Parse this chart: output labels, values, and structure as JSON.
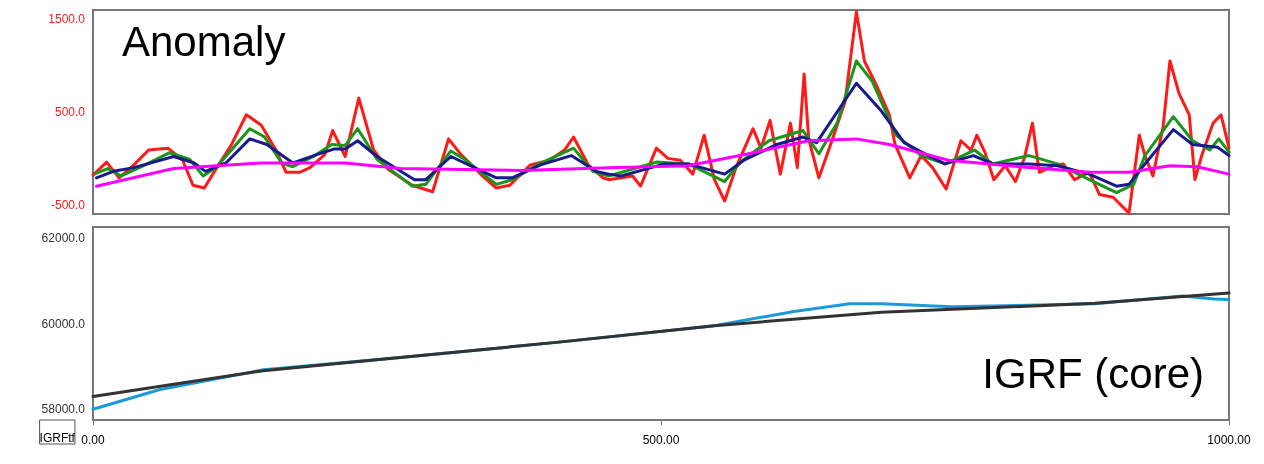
{
  "chart_data": [
    {
      "type": "line",
      "annotations": [
        "Anomaly"
      ],
      "tick_labels": "y",
      "xlim": [
        0,
        1000
      ],
      "ylim": [
        -600,
        1600
      ],
      "yticks": [
        {
          "value": -500,
          "label": "-500.0"
        },
        {
          "value": 500,
          "label": "500.0"
        },
        {
          "value": 1500,
          "label": "1500.0"
        }
      ],
      "marker": "none",
      "line_style": "solid",
      "series": [
        {
          "color": "#ff1a1a",
          "x": [
            0,
            12,
            23,
            36,
            49,
            66,
            79,
            88,
            98,
            109,
            122,
            135,
            148,
            161,
            170,
            182,
            191,
            204,
            211,
            222,
            234,
            247,
            260,
            281,
            299,
            313,
            324,
            342,
            355,
            367,
            385,
            402,
            415,
            423,
            436,
            449,
            454,
            475,
            482,
            496,
            506,
            517,
            528,
            538,
            547,
            556,
            566,
            581,
            588,
            596,
            605,
            614,
            620,
            626,
            630,
            639,
            651,
            662,
            672,
            679,
            690,
            701,
            706,
            719,
            729,
            739,
            751,
            764,
            773,
            778,
            785,
            793,
            803,
            812,
            820,
            827,
            833,
            845,
            854,
            864,
            877,
            886,
            898,
            912,
            921,
            926,
            933,
            942,
            948,
            956,
            965,
            970,
            976,
            986,
            993,
            1000
          ],
          "values": [
            -180,
            -40,
            -210,
            -70,
            90,
            110,
            -20,
            -290,
            -320,
            -100,
            150,
            470,
            360,
            90,
            -150,
            -150,
            -100,
            40,
            300,
            20,
            650,
            90,
            -120,
            -290,
            -360,
            210,
            40,
            -180,
            -320,
            -290,
            -70,
            -20,
            90,
            230,
            -70,
            -210,
            -230,
            -190,
            -300,
            110,
            0,
            -20,
            -170,
            250,
            -230,
            -460,
            -100,
            320,
            110,
            410,
            -170,
            380,
            -100,
            910,
            210,
            -210,
            210,
            610,
            1580,
            1050,
            780,
            470,
            150,
            -210,
            30,
            -100,
            -330,
            190,
            90,
            250,
            70,
            -230,
            -80,
            -250,
            10,
            380,
            -150,
            -80,
            -60,
            -230,
            -150,
            -390,
            -420,
            -590,
            250,
            30,
            -190,
            340,
            1050,
            700,
            470,
            -230,
            30,
            380,
            470,
            110
          ]
        },
        {
          "color": "#1a961a",
          "x": [
            3,
            13,
            25,
            46,
            67,
            85,
            97,
            109,
            138,
            151,
            166,
            176,
            194,
            210,
            222,
            233,
            250,
            281,
            293,
            315,
            327,
            355,
            369,
            391,
            423,
            440,
            454,
            496,
            524,
            556,
            570,
            595,
            625,
            639,
            655,
            672,
            686,
            707,
            729,
            750,
            776,
            792,
            824,
            849,
            877,
            901,
            916,
            926,
            951,
            968,
            983,
            991,
            1000
          ],
          "values": [
            -160,
            -110,
            -190,
            -70,
            60,
            -10,
            -190,
            -90,
            320,
            230,
            -50,
            -90,
            20,
            150,
            140,
            320,
            -10,
            -300,
            -280,
            80,
            -10,
            -280,
            -230,
            -70,
            110,
            -140,
            -190,
            -40,
            -60,
            -250,
            -40,
            190,
            300,
            50,
            380,
            1050,
            830,
            250,
            30,
            -60,
            90,
            -60,
            30,
            -60,
            -230,
            -370,
            -280,
            30,
            450,
            190,
            90,
            210,
            70
          ]
        },
        {
          "color": "#1a1a8c",
          "x": [
            3,
            18,
            36,
            71,
            89,
            99,
            117,
            138,
            153,
            176,
            197,
            212,
            222,
            233,
            250,
            283,
            293,
            315,
            355,
            369,
            394,
            421,
            443,
            454,
            465,
            503,
            524,
            556,
            573,
            602,
            625,
            637,
            672,
            694,
            714,
            729,
            750,
            775,
            792,
            824,
            849,
            877,
            901,
            912,
            926,
            951,
            968,
            990,
            1000
          ],
          "values": [
            -210,
            -140,
            -100,
            20,
            -50,
            -140,
            -50,
            210,
            150,
            -50,
            40,
            100,
            100,
            190,
            20,
            -230,
            -230,
            20,
            -210,
            -210,
            -70,
            30,
            -140,
            -170,
            -190,
            -60,
            -60,
            -170,
            -20,
            150,
            230,
            170,
            810,
            510,
            170,
            70,
            -60,
            30,
            -60,
            -60,
            -80,
            -170,
            -300,
            -280,
            -60,
            310,
            150,
            120,
            30
          ]
        },
        {
          "color": "#ff00ff",
          "x": [
            3,
            71,
            148,
            222,
            271,
            377,
            454,
            524,
            577,
            630,
            672,
            701,
            753,
            806,
            877,
            912,
            948,
            972,
            1000
          ],
          "values": [
            -300,
            -110,
            -50,
            -50,
            -110,
            -130,
            -100,
            -80,
            50,
            190,
            210,
            150,
            -20,
            -80,
            -150,
            -150,
            -80,
            -90,
            -170
          ]
        }
      ]
    },
    {
      "type": "line",
      "annotations": [
        "IGRF (core)"
      ],
      "xlabel": "IGRFtf",
      "xlim": [
        0,
        1000
      ],
      "xticks": [
        {
          "value": 0,
          "label": "0.00"
        },
        {
          "value": 500,
          "label": "500.00"
        },
        {
          "value": 1000,
          "label": "1000.00"
        }
      ],
      "ylim": [
        57750,
        62250
      ],
      "yticks": [
        {
          "value": 58000,
          "label": "58000.0"
        },
        {
          "value": 60000,
          "label": "60000.0"
        },
        {
          "value": 62000,
          "label": "62000.0"
        }
      ],
      "marker": "none",
      "line_style": "solid",
      "series": [
        {
          "color": "#1a9ad6",
          "x": [
            0,
            59,
            150,
            268,
            408,
            547,
            617,
            666,
            694,
            756,
            882,
            959,
            987,
            1000
          ],
          "values": [
            58000,
            58460,
            58920,
            59200,
            59560,
            59950,
            60280,
            60460,
            60460,
            60390,
            60460,
            60640,
            60570,
            60560
          ]
        },
        {
          "color": "#333333",
          "x": [
            0,
            150,
            268,
            408,
            547,
            694,
            882,
            1000
          ],
          "values": [
            58300,
            58900,
            59200,
            59560,
            59950,
            60260,
            60470,
            60710
          ]
        }
      ]
    }
  ]
}
